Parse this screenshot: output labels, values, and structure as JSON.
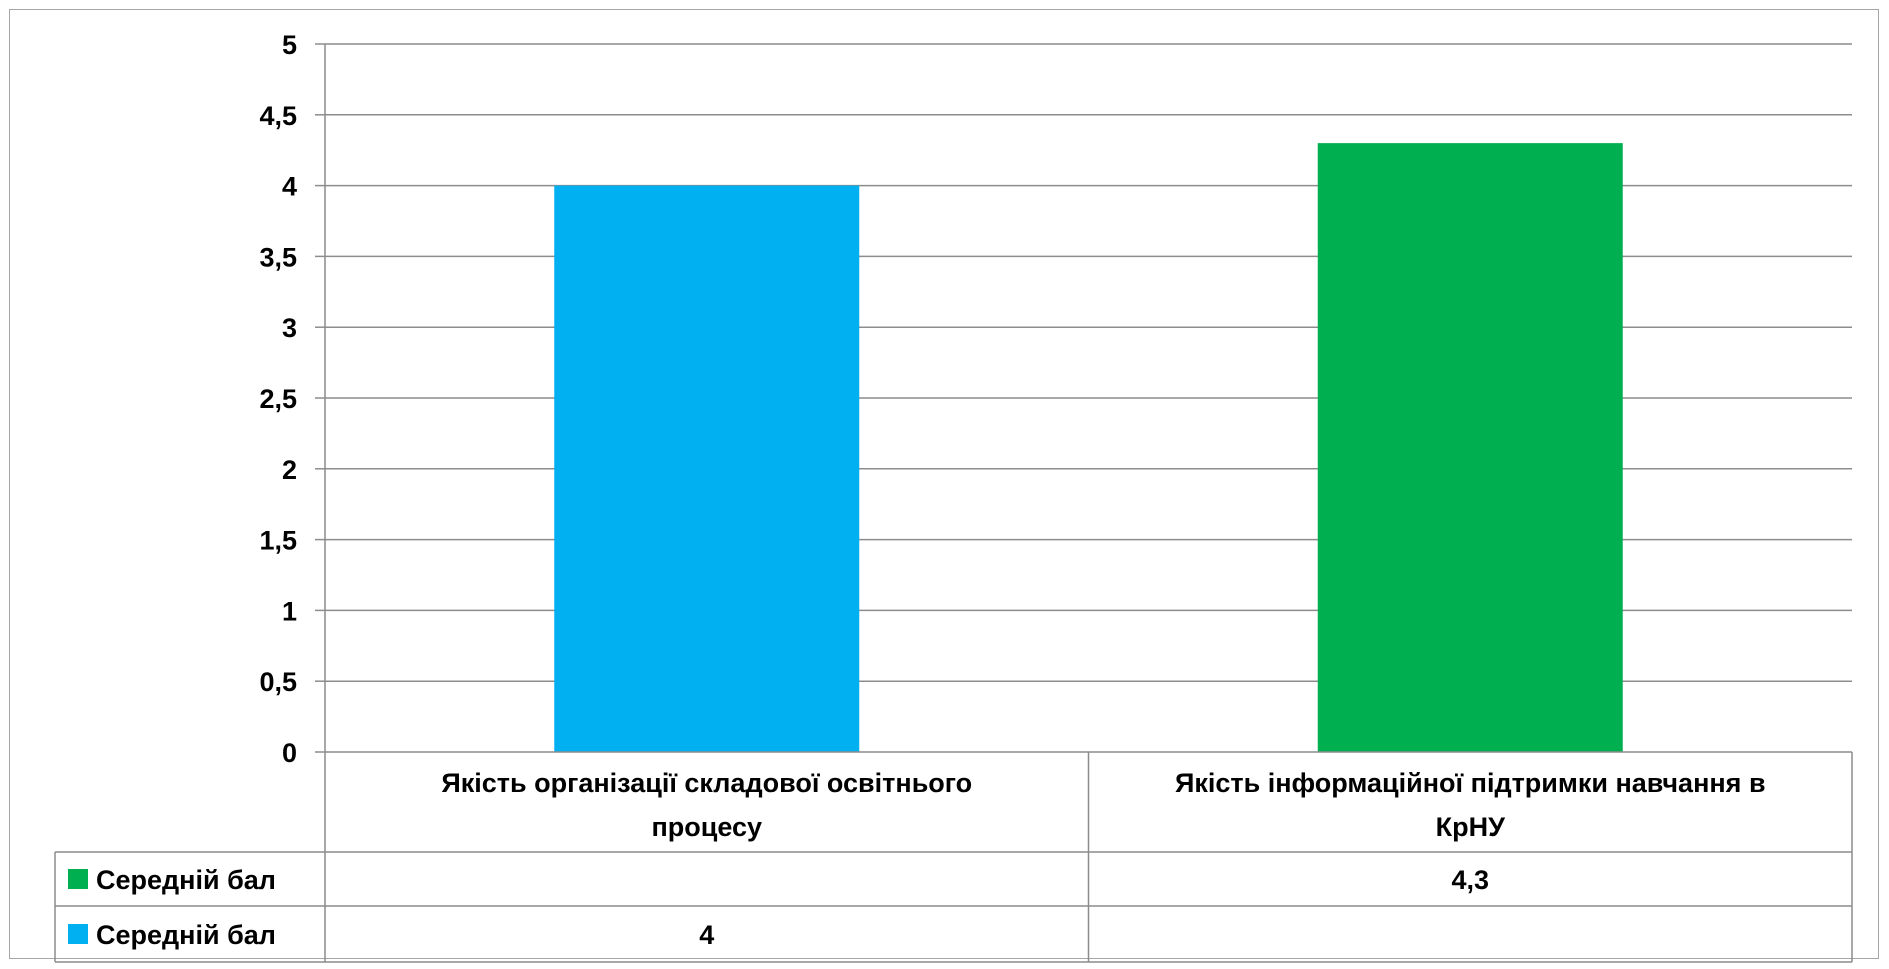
{
  "chart_data": {
    "type": "bar",
    "categories": [
      "Якість організації складової освітнього процесу",
      "Якість інформаційної підтримки навчання в КрНУ"
    ],
    "category_lines": [
      [
        "Якість організації складової освітнього",
        "процесу"
      ],
      [
        "Якість інформаційної підтримки навчання в",
        "КрНУ"
      ]
    ],
    "series": [
      {
        "name": "Середній бал",
        "color": "#00b050",
        "values": [
          null,
          4.3
        ]
      },
      {
        "name": "Середній бал",
        "color": "#00b0f0",
        "values": [
          4,
          null
        ]
      }
    ],
    "data_table_rows": [
      {
        "series_index": 0,
        "cells": [
          "",
          "4,3"
        ]
      },
      {
        "series_index": 1,
        "cells": [
          "4",
          ""
        ]
      }
    ],
    "bars": [
      {
        "category_index": 0,
        "value": 4,
        "color": "#00b0f0"
      },
      {
        "category_index": 1,
        "value": 4.3,
        "color": "#00b050"
      }
    ],
    "yticks": [
      "0",
      "0,5",
      "1",
      "1,5",
      "2",
      "2,5",
      "3",
      "3,5",
      "4",
      "4,5",
      "5"
    ],
    "ylim": [
      0,
      5
    ],
    "ystep": 0.5,
    "grid": true,
    "legend": "data-table-left",
    "title": "",
    "xlabel": "",
    "ylabel": ""
  }
}
